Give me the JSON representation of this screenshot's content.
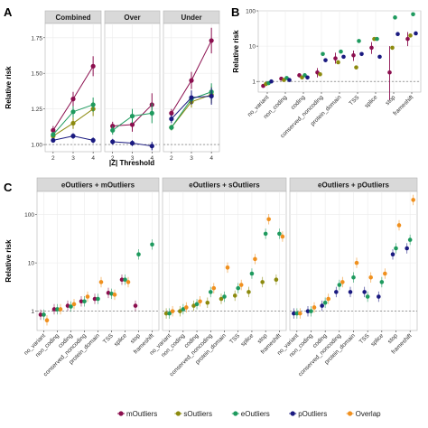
{
  "colors": {
    "mOutliers": "#8b0e4e",
    "sOutliers": "#8c8a0e",
    "eOutliers": "#1e9a5e",
    "pOutliers": "#1a1a80",
    "Overlap": "#f0901e",
    "strip_bg": "#d9d9d9",
    "panel_border": "#b3b3b3",
    "grid": "#ebebeb",
    "ref_line": "#666666"
  },
  "legend": {
    "items": [
      {
        "label": "mOutliers",
        "color": "#8b0e4e"
      },
      {
        "label": "sOutliers",
        "color": "#8c8a0e"
      },
      {
        "label": "eOutliers",
        "color": "#1e9a5e"
      },
      {
        "label": "pOutliers",
        "color": "#1a1a80"
      },
      {
        "label": "Overlap",
        "color": "#f0901e"
      }
    ]
  },
  "chart_data": [
    {
      "panel_label": "A",
      "type": "line",
      "facets": [
        "Combined",
        "Over",
        "Under"
      ],
      "xlabel": "|Z| Threshold",
      "ylabel": "Relative risk",
      "x": [
        2,
        3,
        4
      ],
      "ylim": [
        0.95,
        1.85
      ],
      "yticks": [
        "1.00",
        "1.25",
        "1.50",
        "1.75"
      ],
      "reference_line": 1,
      "series": {
        "Combined": [
          {
            "name": "mOutliers",
            "values": [
              1.1,
              1.32,
              1.55
            ],
            "err": [
              0.03,
              0.05,
              0.07
            ]
          },
          {
            "name": "sOutliers",
            "values": [
              1.06,
              1.15,
              1.25
            ],
            "err": [
              0.02,
              0.04,
              0.05
            ]
          },
          {
            "name": "eOutliers",
            "values": [
              1.07,
              1.23,
              1.28
            ],
            "err": [
              0.02,
              0.04,
              0.05
            ]
          },
          {
            "name": "pOutliers",
            "values": [
              1.03,
              1.06,
              1.03
            ],
            "err": [
              0.01,
              0.02,
              0.02
            ]
          }
        ],
        "Over": [
          {
            "name": "mOutliers",
            "values": [
              1.13,
              1.14,
              1.28
            ],
            "err": [
              0.03,
              0.05,
              0.08
            ]
          },
          {
            "name": "eOutliers",
            "values": [
              1.1,
              1.2,
              1.22
            ],
            "err": [
              0.03,
              0.05,
              0.07
            ]
          },
          {
            "name": "pOutliers",
            "values": [
              1.02,
              1.01,
              0.99
            ],
            "err": [
              0.02,
              0.02,
              0.03
            ]
          }
        ],
        "Under": [
          {
            "name": "mOutliers",
            "values": [
              1.22,
              1.45,
              1.73
            ],
            "err": [
              0.03,
              0.06,
              0.09
            ]
          },
          {
            "name": "sOutliers",
            "values": [
              1.12,
              1.3,
              1.35
            ],
            "err": [
              0.02,
              0.04,
              0.06
            ]
          },
          {
            "name": "eOutliers",
            "values": [
              1.12,
              1.32,
              1.37
            ],
            "err": [
              0.02,
              0.04,
              0.06
            ]
          },
          {
            "name": "pOutliers",
            "values": [
              1.18,
              1.33,
              1.34
            ],
            "err": [
              0.03,
              0.05,
              0.06
            ]
          }
        ]
      }
    },
    {
      "panel_label": "B",
      "type": "scatter",
      "ylabel": "Relative risk",
      "yscale": "log",
      "ylim": [
        0.5,
        100
      ],
      "yticks": [
        1,
        10,
        100
      ],
      "reference_line": 1,
      "categories": [
        "no_variant",
        "non_coding",
        "coding",
        "conserved_noncoding",
        "protein_domain",
        "TSS",
        "splice",
        "stop",
        "frameshift"
      ],
      "series": [
        {
          "name": "mOutliers",
          "values": [
            0.75,
            1.2,
            1.5,
            1.8,
            4.5,
            5.5,
            9,
            1.8,
            16
          ],
          "lo": [
            0.7,
            1.1,
            1.3,
            1.3,
            3.2,
            3.8,
            6,
            0.3,
            10
          ],
          "hi": [
            0.8,
            1.3,
            1.7,
            2.4,
            6.5,
            7.5,
            13,
            10,
            25
          ]
        },
        {
          "name": "sOutliers",
          "values": [
            0.85,
            1.1,
            1.3,
            1.6,
            3.5,
            2.5,
            16,
            9,
            20
          ]
        },
        {
          "name": "eOutliers",
          "values": [
            0.9,
            1.25,
            1.5,
            6,
            7,
            14,
            16,
            65,
            80
          ]
        },
        {
          "name": "pOutliers",
          "values": [
            1.0,
            1.1,
            1.3,
            4.0,
            5.0,
            6.0,
            5.0,
            22,
            23
          ]
        }
      ]
    },
    {
      "panel_label": "C",
      "type": "scatter",
      "facets": [
        "eOutliers + mOutliers",
        "eOutliers + sOutliers",
        "eOutliers + pOutliers"
      ],
      "ylabel": "Relative risk",
      "yscale": "log",
      "ylim": [
        0.4,
        300
      ],
      "yticks": [
        1,
        10,
        100
      ],
      "reference_line": 1,
      "categories": [
        "no_variant",
        "non_coding",
        "coding",
        "conserved_noncoding",
        "protein_domain",
        "TSS",
        "splice",
        "stop",
        "frameshift"
      ],
      "groups": {
        "eOutliers + mOutliers": [
          {
            "name": "mOutliers",
            "values": [
              0.85,
              1.1,
              1.3,
              1.6,
              1.8,
              2.4,
              4.5,
              1.3,
              null
            ]
          },
          {
            "name": "eOutliers",
            "values": [
              0.85,
              1.1,
              1.25,
              1.6,
              1.8,
              2.3,
              4.5,
              15,
              24
            ]
          },
          {
            "name": "Overlap",
            "values": [
              0.65,
              1.1,
              1.4,
              2.0,
              4.0,
              2.2,
              4.0,
              null,
              null
            ]
          }
        ],
        "eOutliers + sOutliers": [
          {
            "name": "sOutliers",
            "values": [
              0.9,
              1.0,
              1.3,
              1.5,
              1.8,
              2.1,
              2.5,
              4.0,
              4.5
            ]
          },
          {
            "name": "eOutliers",
            "values": [
              0.9,
              1.1,
              1.4,
              2.5,
              2.0,
              3.0,
              6.0,
              40,
              40
            ]
          },
          {
            "name": "Overlap",
            "values": [
              1.0,
              1.2,
              1.6,
              3.0,
              8.0,
              3.5,
              12,
              80,
              35
            ]
          }
        ],
        "eOutliers + pOutliers": [
          {
            "name": "pOutliers",
            "values": [
              0.9,
              1.0,
              1.3,
              2.5,
              2.5,
              2.5,
              2.0,
              15,
              20
            ]
          },
          {
            "name": "eOutliers",
            "values": [
              0.9,
              1.0,
              1.5,
              3.5,
              5.0,
              2.0,
              4.0,
              20,
              30
            ]
          },
          {
            "name": "Overlap",
            "values": [
              0.9,
              1.2,
              1.8,
              4.0,
              10,
              5.0,
              6.0,
              60,
              200
            ]
          }
        ]
      }
    }
  ]
}
